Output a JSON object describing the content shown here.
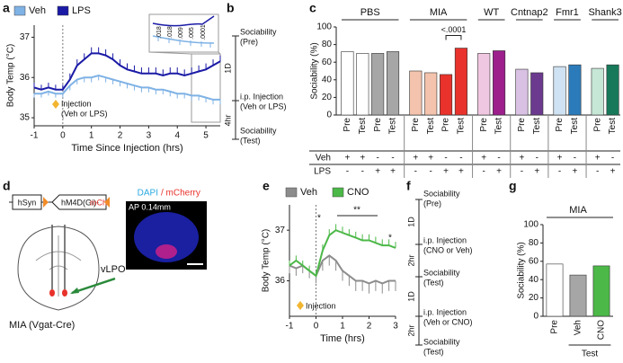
{
  "chart_data": [
    {
      "type": "line",
      "panel": "a",
      "xlabel": "Time Since Injection (hrs)",
      "ylabel": "Body Temp (°C)",
      "xlim": [
        -1,
        5.5
      ],
      "xticks": [
        -1,
        0,
        1,
        2,
        3,
        4,
        5
      ],
      "ylim": [
        34.8,
        37.3
      ],
      "yticks": [
        35,
        36,
        37
      ],
      "x": [
        -1,
        -0.75,
        -0.5,
        -0.25,
        0,
        0.25,
        0.5,
        0.75,
        1,
        1.25,
        1.5,
        1.75,
        2,
        2.25,
        2.5,
        2.75,
        3,
        3.25,
        3.5,
        3.75,
        4,
        4.25,
        4.5,
        4.75,
        5,
        5.25,
        5.5
      ],
      "series": [
        {
          "name": "Veh",
          "color": "#7fb2e5",
          "error_direction": "down",
          "values": [
            35.6,
            35.6,
            35.65,
            35.6,
            35.6,
            35.8,
            35.95,
            36.0,
            36.0,
            36.05,
            36.0,
            35.95,
            35.9,
            35.85,
            35.8,
            35.75,
            35.75,
            35.7,
            35.7,
            35.65,
            35.6,
            35.6,
            35.55,
            35.55,
            35.5,
            35.45,
            35.45
          ],
          "errors": [
            0.1,
            0.1,
            0.1,
            0.1,
            0.1,
            0.12,
            0.12,
            0.12,
            0.12,
            0.12,
            0.12,
            0.12,
            0.12,
            0.12,
            0.12,
            0.12,
            0.12,
            0.12,
            0.12,
            0.12,
            0.12,
            0.12,
            0.12,
            0.12,
            0.12,
            0.12,
            0.12
          ]
        },
        {
          "name": "LPS",
          "color": "#1a1aa6",
          "error_direction": "up",
          "values": [
            35.75,
            35.7,
            35.75,
            35.7,
            35.7,
            35.95,
            36.3,
            36.45,
            36.6,
            36.6,
            36.55,
            36.45,
            36.3,
            36.2,
            36.15,
            36.1,
            36.1,
            36.1,
            36.05,
            36.1,
            36.1,
            36.05,
            36.1,
            36.15,
            36.2,
            36.3,
            36.4
          ],
          "errors": [
            0.12,
            0.12,
            0.12,
            0.12,
            0.12,
            0.15,
            0.15,
            0.15,
            0.15,
            0.15,
            0.15,
            0.15,
            0.15,
            0.15,
            0.15,
            0.15,
            0.15,
            0.15,
            0.15,
            0.15,
            0.15,
            0.15,
            0.15,
            0.15,
            0.15,
            0.15,
            0.15
          ]
        }
      ],
      "annotations": [
        "Injection",
        "(Veh or LPS)"
      ],
      "inset_labels": [
        ".018",
        ".018",
        ".009",
        ".005",
        ".0001"
      ]
    },
    {
      "type": "bar",
      "panel": "c",
      "ylabel": "Sociability (%)",
      "ylim": [
        0,
        100
      ],
      "yticks": [
        0,
        20,
        40,
        60,
        80,
        100
      ],
      "row_labels": [
        "Veh",
        "LPS"
      ],
      "annotation": "<.0001",
      "groups": [
        {
          "name": "PBS",
          "bars": [
            {
              "label": "Pre",
              "value": 72,
              "color": "#ffffff",
              "veh": "+",
              "lps": "-"
            },
            {
              "label": "Test",
              "value": 70,
              "color": "#ffffff",
              "veh": "+",
              "lps": "-"
            },
            {
              "label": "Pre",
              "value": 70,
              "color": "#a6a6a6",
              "veh": "-",
              "lps": "+"
            },
            {
              "label": "Test",
              "value": 72,
              "color": "#a6a6a6",
              "veh": "-",
              "lps": "+"
            }
          ]
        },
        {
          "name": "MIA",
          "bars": [
            {
              "label": "Pre",
              "value": 50,
              "color": "#f4c3ad",
              "veh": "+",
              "lps": "-"
            },
            {
              "label": "Test",
              "value": 48,
              "color": "#f4c3ad",
              "veh": "+",
              "lps": "-"
            },
            {
              "label": "Pre",
              "value": 46,
              "color": "#e8322b",
              "veh": "-",
              "lps": "+"
            },
            {
              "label": "Test",
              "value": 76,
              "color": "#e8322b",
              "veh": "-",
              "lps": "+"
            }
          ]
        },
        {
          "name": "WT",
          "bars": [
            {
              "label": "Pre",
              "value": 70,
              "color": "#f0c7e1",
              "veh": "+",
              "lps": "-"
            },
            {
              "label": "Test",
              "value": 73,
              "color": "#9c1f8c",
              "veh": "-",
              "lps": "+"
            }
          ]
        },
        {
          "name": "Cntnap2",
          "bars": [
            {
              "label": "Pre",
              "value": 52,
              "color": "#d9c1e3",
              "veh": "+",
              "lps": "-"
            },
            {
              "label": "Test",
              "value": 48,
              "color": "#6b3a8e",
              "veh": "-",
              "lps": "+"
            }
          ]
        },
        {
          "name": "Fmr1",
          "bars": [
            {
              "label": "Pre",
              "value": 55,
              "color": "#cfe2f3",
              "veh": "+",
              "lps": "-"
            },
            {
              "label": "Test",
              "value": 57,
              "color": "#2b7bba",
              "veh": "-",
              "lps": "+"
            }
          ]
        },
        {
          "name": "Shank3",
          "bars": [
            {
              "label": "Pre",
              "value": 53,
              "color": "#c6e6d6",
              "veh": "+",
              "lps": "-"
            },
            {
              "label": "Test",
              "value": 57,
              "color": "#17795a",
              "veh": "-",
              "lps": "+"
            }
          ]
        }
      ]
    },
    {
      "type": "line",
      "panel": "e",
      "xlabel": "Time (hrs)",
      "ylabel": "Body Temp (°C)",
      "xlim": [
        -1,
        3
      ],
      "xticks": [
        -1,
        0,
        1,
        2,
        3
      ],
      "ylim": [
        35.3,
        37.5
      ],
      "yticks": [
        36,
        37
      ],
      "x": [
        -1,
        -0.75,
        -0.5,
        -0.25,
        0,
        0.25,
        0.5,
        0.75,
        1,
        1.25,
        1.5,
        1.75,
        2,
        2.25,
        2.5,
        2.75,
        3
      ],
      "series": [
        {
          "name": "Veh",
          "color": "#8c8c8c",
          "error_direction": "down",
          "values": [
            36.3,
            36.25,
            36.3,
            36.2,
            36.1,
            36.4,
            36.5,
            36.4,
            36.2,
            36.1,
            36.0,
            36.0,
            35.95,
            36.0,
            35.95,
            36.0,
            36.0
          ],
          "errors": [
            0.15,
            0.15,
            0.15,
            0.15,
            0.15,
            0.2,
            0.2,
            0.2,
            0.2,
            0.2,
            0.2,
            0.2,
            0.2,
            0.2,
            0.2,
            0.2,
            0.2
          ]
        },
        {
          "name": "CNO",
          "color": "#4cb848",
          "error_direction": "up",
          "values": [
            36.3,
            36.4,
            36.3,
            36.2,
            36.1,
            36.6,
            36.9,
            37.0,
            36.95,
            36.9,
            36.85,
            36.8,
            36.8,
            36.75,
            36.7,
            36.7,
            36.65
          ],
          "errors": [
            0.1,
            0.1,
            0.1,
            0.1,
            0.1,
            0.12,
            0.12,
            0.12,
            0.12,
            0.12,
            0.12,
            0.12,
            0.12,
            0.12,
            0.12,
            0.12,
            0.12
          ]
        }
      ],
      "annotations": [
        "*",
        "**",
        "*",
        "Injection"
      ]
    },
    {
      "type": "bar",
      "panel": "g",
      "title": "MIA",
      "ylabel": "Sociability (%)",
      "ylim": [
        0,
        100
      ],
      "yticks": [
        0,
        20,
        40,
        60,
        80,
        100
      ],
      "categories": [
        "Pre",
        "Veh",
        "CNO"
      ],
      "values": [
        57,
        45,
        55
      ],
      "colors": [
        "#ffffff",
        "#a6a6a6",
        "#4cb848"
      ],
      "group_label": "Test"
    }
  ],
  "diagrams": {
    "b": {
      "panel": "b",
      "intervals": [
        "1D",
        "4hr"
      ],
      "steps": [
        [
          "Sociability",
          "(Pre)"
        ],
        [
          "i.p. Injection",
          "(Veh or LPS)"
        ],
        [
          "Sociability",
          "(Test)"
        ]
      ]
    },
    "d": {
      "panel": "d",
      "promoter": "hSyn",
      "construct": "hM4D(Gi)-",
      "reporter": "mCh",
      "region": "vLPO",
      "model": "MIA (Vgat-Cre)",
      "stain1": "DAPI",
      "stain2": "/ mCherry",
      "section": "AP 0.14mm"
    },
    "f": {
      "panel": "f",
      "intervals": [
        "1D",
        "2hr",
        "1D",
        "2hr"
      ],
      "steps": [
        [
          "Sociability",
          "(Pre)"
        ],
        [
          "i.p. Injection",
          "(CNO or Veh)"
        ],
        [
          "Sociability",
          "(Test)"
        ],
        [
          "i.p. Injection",
          "(Veh or CNO)"
        ],
        [
          "Sociability",
          "(Test)"
        ]
      ]
    }
  }
}
